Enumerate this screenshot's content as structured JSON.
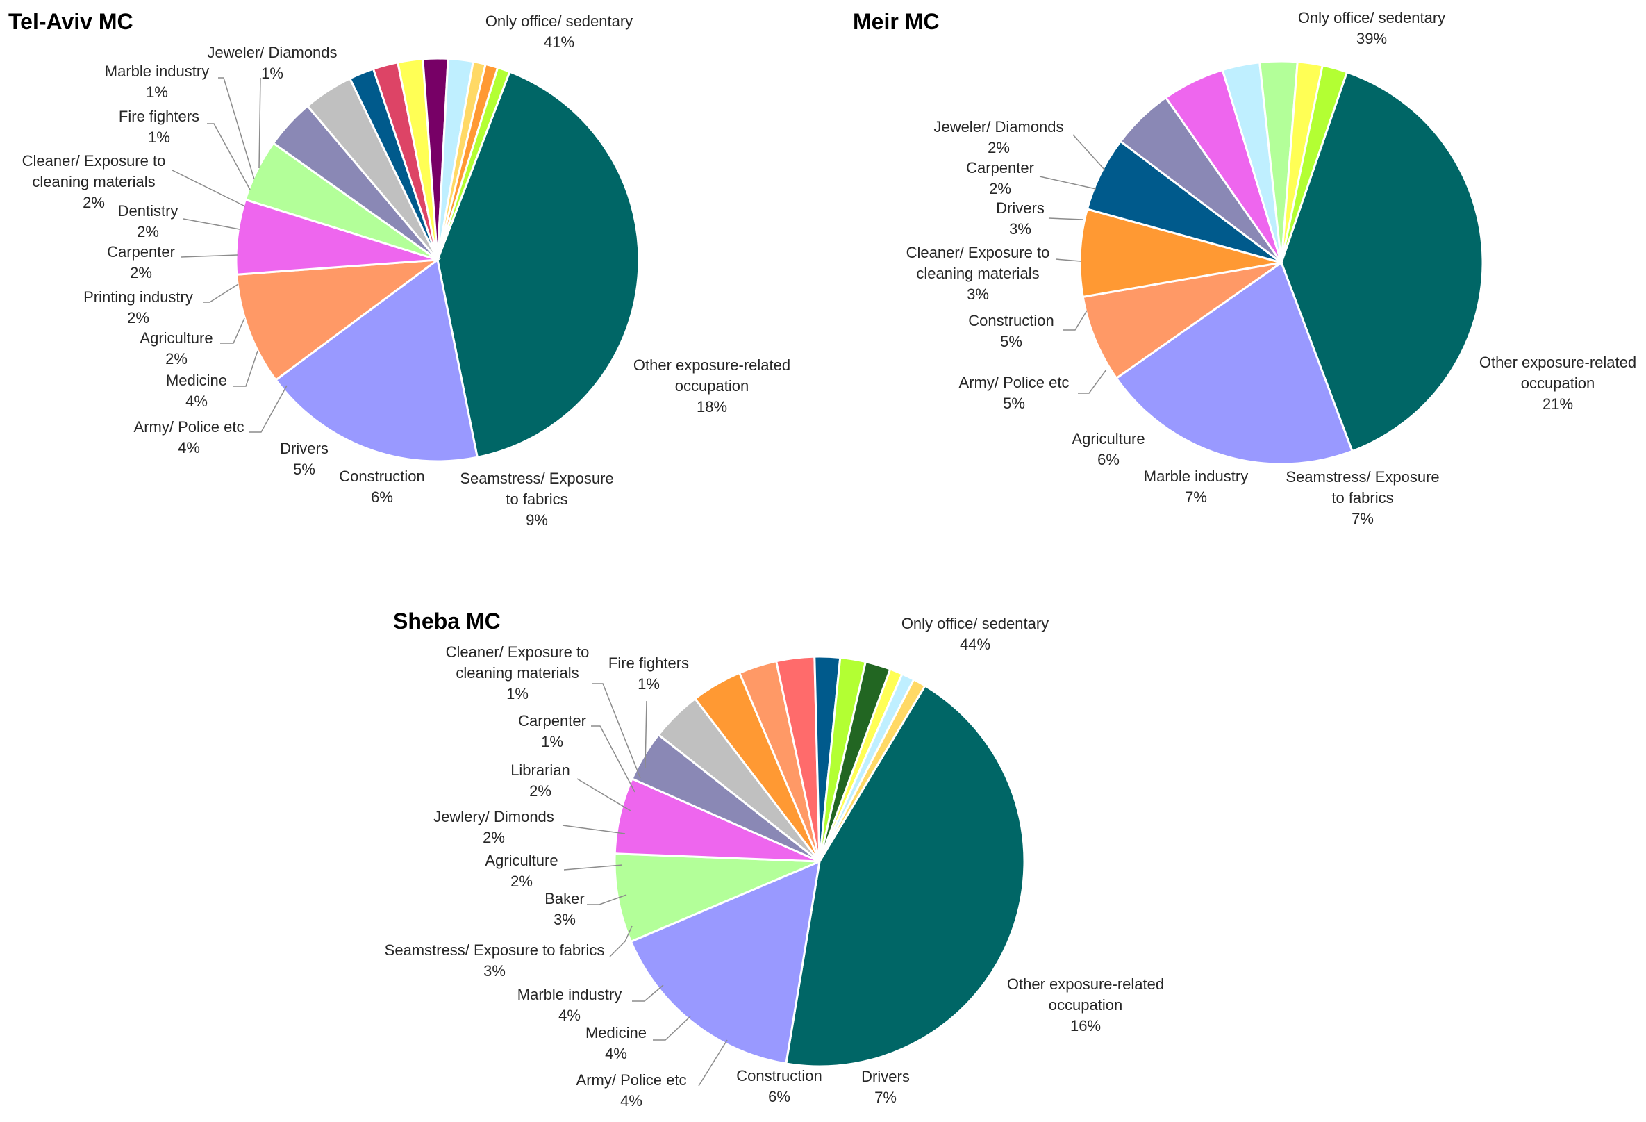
{
  "chart_data": [
    {
      "type": "pie",
      "title": "Tel-Aviv MC",
      "unit": "%",
      "slices": [
        {
          "label": "Only office/ sedentary",
          "value": 41,
          "color": "#006666"
        },
        {
          "label": "Other exposure-related occupation",
          "value": 18,
          "color": "#9999FF"
        },
        {
          "label": "Seamstress/ Exposure to fabrics",
          "value": 9,
          "color": "#FF9966"
        },
        {
          "label": "Construction",
          "value": 6,
          "color": "#EE66EE"
        },
        {
          "label": "Drivers",
          "value": 5,
          "color": "#B3FF99"
        },
        {
          "label": "Army/ Police etc",
          "value": 4,
          "color": "#8A88B5"
        },
        {
          "label": "Medicine",
          "value": 4,
          "color": "#C0C0C0"
        },
        {
          "label": "Agriculture",
          "value": 2,
          "color": "#005A8C"
        },
        {
          "label": "Printing industry",
          "value": 2,
          "color": "#DD4466"
        },
        {
          "label": "Carpenter",
          "value": 2,
          "color": "#FFFF55"
        },
        {
          "label": "Dentistry",
          "value": 2,
          "color": "#770066"
        },
        {
          "label": "Cleaner/ Exposure to cleaning materials",
          "value": 2,
          "color": "#BFEFFF"
        },
        {
          "label": "Fire fighters",
          "value": 1,
          "color": "#FFD966"
        },
        {
          "label": "Marble industry",
          "value": 1,
          "color": "#FF9933"
        },
        {
          "label": "Jeweler/ Diamonds",
          "value": 1,
          "color": "#B3FF33"
        }
      ]
    },
    {
      "type": "pie",
      "title": "Meir MC",
      "unit": "%",
      "slices": [
        {
          "label": "Only office/ sedentary",
          "value": 39,
          "color": "#006666"
        },
        {
          "label": "Other exposure-related occupation",
          "value": 21,
          "color": "#9999FF"
        },
        {
          "label": "Seamstress/ Exposure to fabrics",
          "value": 7,
          "color": "#FF9966"
        },
        {
          "label": "Marble industry",
          "value": 7,
          "color": "#FF9933"
        },
        {
          "label": "Agriculture",
          "value": 6,
          "color": "#005A8C"
        },
        {
          "label": "Army/ Police etc",
          "value": 5,
          "color": "#8A88B5"
        },
        {
          "label": "Construction",
          "value": 5,
          "color": "#EE66EE"
        },
        {
          "label": "Cleaner/ Exposure to cleaning materials",
          "value": 3,
          "color": "#BFEFFF"
        },
        {
          "label": "Drivers",
          "value": 3,
          "color": "#B3FF99"
        },
        {
          "label": "Carpenter",
          "value": 2,
          "color": "#FFFF55"
        },
        {
          "label": "Jeweler/ Diamonds",
          "value": 2,
          "color": "#B3FF33"
        }
      ]
    },
    {
      "type": "pie",
      "title": "Sheba MC",
      "unit": "%",
      "slices": [
        {
          "label": "Only office/ sedentary",
          "value": 44,
          "color": "#006666"
        },
        {
          "label": "Other exposure-related occupation",
          "value": 16,
          "color": "#9999FF"
        },
        {
          "label": "Drivers",
          "value": 7,
          "color": "#B3FF99"
        },
        {
          "label": "Construction",
          "value": 6,
          "color": "#EE66EE"
        },
        {
          "label": "Army/ Police etc",
          "value": 4,
          "color": "#8A88B5"
        },
        {
          "label": "Medicine",
          "value": 4,
          "color": "#C0C0C0"
        },
        {
          "label": "Marble industry",
          "value": 4,
          "color": "#FF9933"
        },
        {
          "label": "Seamstress/ Exposure to fabrics",
          "value": 3,
          "color": "#FF9966"
        },
        {
          "label": "Baker",
          "value": 3,
          "color": "#FF6B6B"
        },
        {
          "label": "Agriculture",
          "value": 2,
          "color": "#005A8C"
        },
        {
          "label": "Jewlery/ Dimonds",
          "value": 2,
          "color": "#B3FF33"
        },
        {
          "label": "Librarian",
          "value": 2,
          "color": "#226622"
        },
        {
          "label": "Carpenter",
          "value": 1,
          "color": "#FFFF55"
        },
        {
          "label": "Cleaner/ Exposure to cleaning materials",
          "value": 1,
          "color": "#BFEFFF"
        },
        {
          "label": "Fire fighters",
          "value": 1,
          "color": "#FFD966"
        }
      ]
    }
  ]
}
